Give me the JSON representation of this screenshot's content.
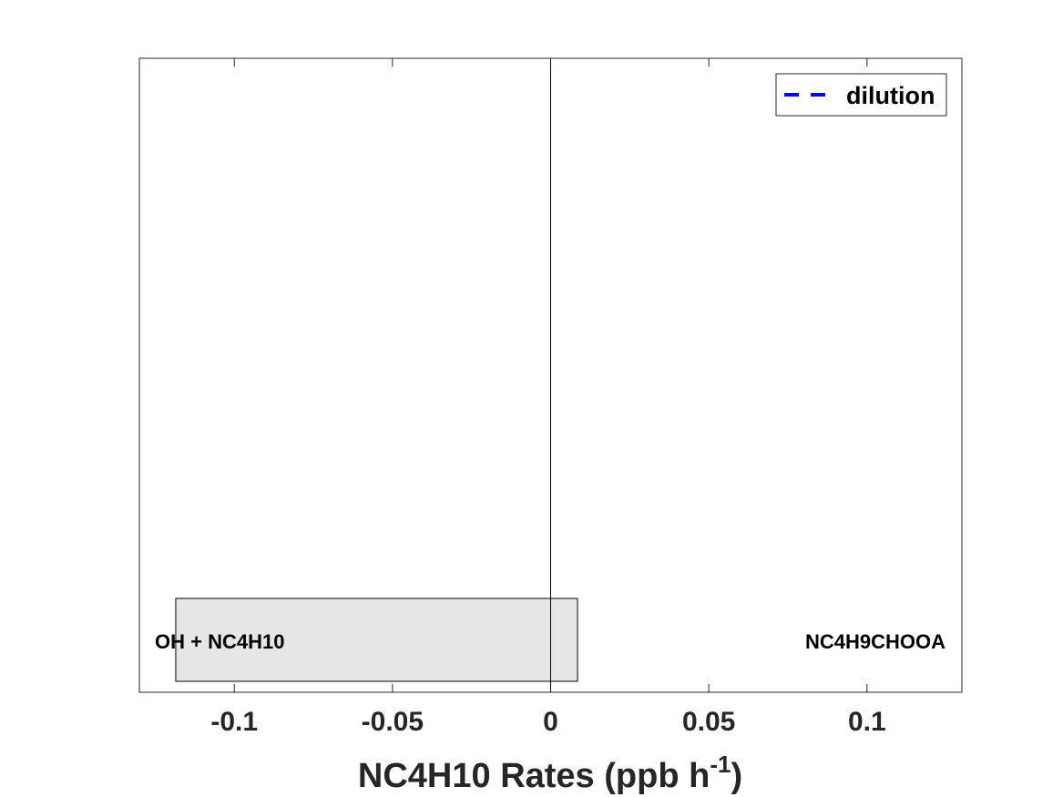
{
  "chart_data": {
    "type": "bar",
    "orientation": "horizontal",
    "xlabel": "NC4H10 Rates (ppb h",
    "xlabel_superscript": "-1",
    "xlabel_suffix": ")",
    "xlim": [
      -0.13,
      0.13
    ],
    "xticks": [
      -0.1,
      -0.05,
      0,
      0.05,
      0.1
    ],
    "xtick_labels": [
      "-0.1",
      "-0.05",
      "0",
      "0.05",
      "0.1"
    ],
    "bars": [
      {
        "neg_label": "OH + NC4H10",
        "pos_label": "NC4H9CHOOA",
        "start": -0.1185,
        "end": 0.0085,
        "fill": "#e6e6e6"
      }
    ],
    "legend": {
      "placement": "top-right",
      "entries": [
        {
          "label": "dilution",
          "style": "dashed",
          "color": "#0000ff"
        }
      ]
    },
    "zero_line": true,
    "grid": false
  }
}
